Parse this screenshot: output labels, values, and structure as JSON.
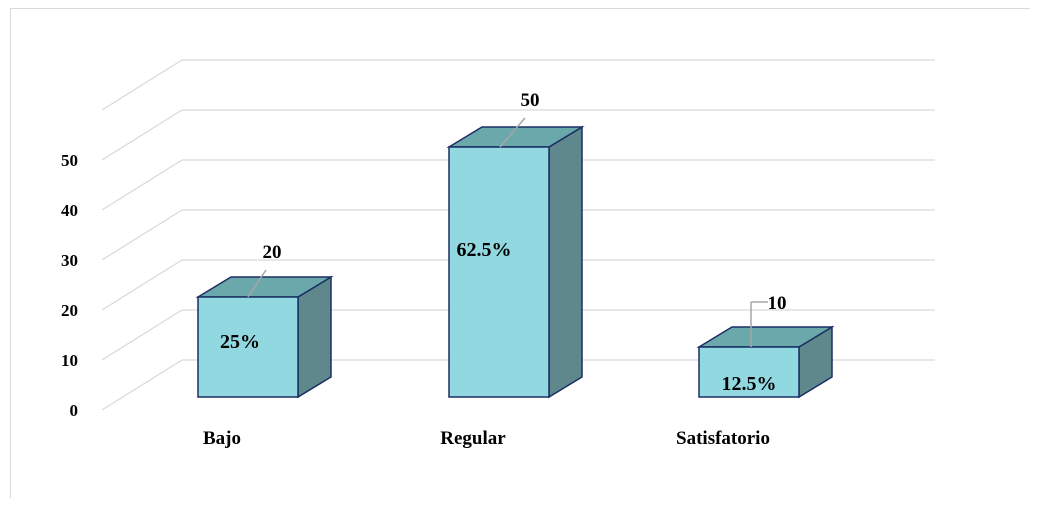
{
  "chart_data": {
    "type": "bar",
    "categories": [
      "Bajo",
      "Regular",
      "Satisfatorio"
    ],
    "values": [
      20,
      50,
      10
    ],
    "percent_labels": [
      "25%",
      "62.5%",
      "12.5%"
    ],
    "yticks": [
      0,
      10,
      20,
      30,
      40,
      50
    ],
    "ylim": [
      0,
      50
    ],
    "grid": true,
    "legend": "none",
    "three_d": true,
    "colors": {
      "front": "#92d8e0",
      "top": "#6aa8ab",
      "side": "#5e888b",
      "edge": "#1b2f63",
      "grid": "#d9d9d9",
      "leader": "#a6a6a6"
    }
  }
}
